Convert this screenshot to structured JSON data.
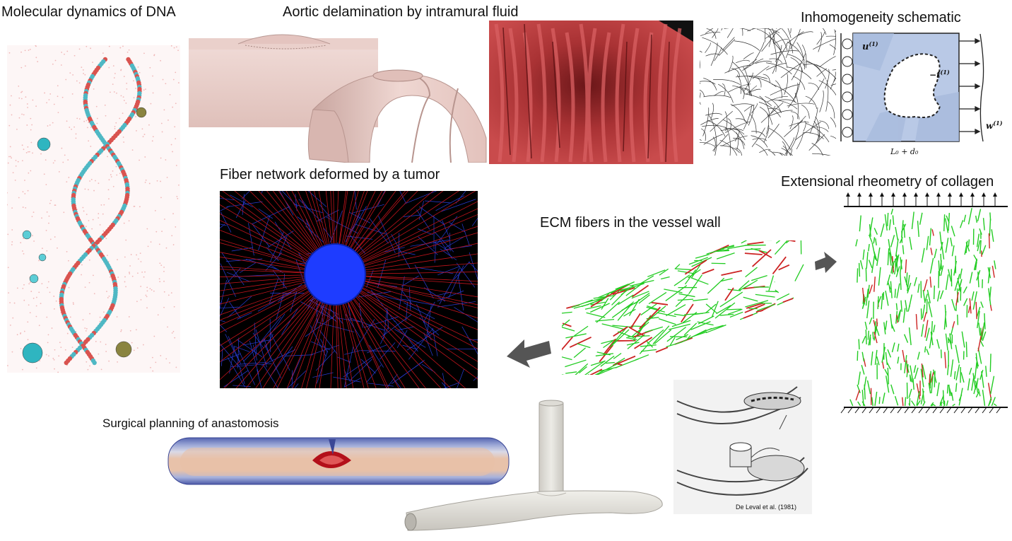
{
  "labels": {
    "dna": "Molecular dynamics of DNA",
    "aortic": "Aortic delamination by intramural fluid",
    "inhomogeneity": "Inhomogeneity schematic",
    "tumor": "Fiber network deformed by a tumor",
    "extensional": "Extensional rheometry of collagen",
    "ecm": "ECM fibers in the vessel wall",
    "surgical": "Surgical planning of anastomosis"
  },
  "schematic": {
    "u": "u",
    "u_sup": "(1)",
    "t": "−t",
    "t_sup": "(1)",
    "w": "w",
    "w_sup": "(1)",
    "length": "L₀ + d₀"
  },
  "citation": "De Leval et al. (1981)",
  "colors": {
    "dna_cyan": "#4fb8c4",
    "dna_red": "#d9534f",
    "aorta_skin": "#e8c9c3",
    "aorta_red": "#a8292a",
    "tumor_blue": "#1e3cff",
    "tumor_red": "#c0141c",
    "fiber_green": "#22cc22",
    "fiber_red": "#cc2222",
    "vessel_grey": "#e6e4df",
    "schematic_fill": "#b9c9e6"
  },
  "icons": {
    "arrow_left": "arrow-left-icon",
    "arrow_right": "arrow-right-icon"
  }
}
